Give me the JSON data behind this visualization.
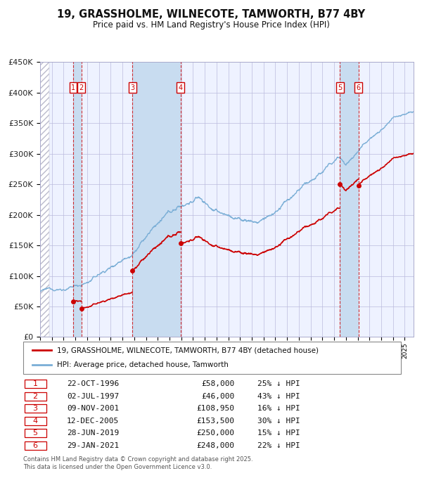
{
  "title": "19, GRASSHOLME, WILNECOTE, TAMWORTH, B77 4BY",
  "subtitle": "Price paid vs. HM Land Registry's House Price Index (HPI)",
  "ylim": [
    0,
    450000
  ],
  "yticks": [
    0,
    50000,
    100000,
    150000,
    200000,
    250000,
    300000,
    350000,
    400000,
    450000
  ],
  "ytick_labels": [
    "£0",
    "£50K",
    "£100K",
    "£150K",
    "£200K",
    "£250K",
    "£300K",
    "£350K",
    "£400K",
    "£450K"
  ],
  "xlim_start": 1994.0,
  "xlim_end": 2025.75,
  "hpi_line_color": "#7aaed6",
  "price_line_color": "#cc0000",
  "vline_color": "#cc0000",
  "shade_color": "#ddeeff",
  "grid_color": "#bbbbdd",
  "chart_bg_color": "#eef2ff",
  "transactions": [
    {
      "id": 1,
      "date_str": "22-OCT-1996",
      "date_num": 1996.81,
      "price": 58000,
      "hpi_pct": 25
    },
    {
      "id": 2,
      "date_str": "02-JUL-1997",
      "date_num": 1997.5,
      "price": 46000,
      "hpi_pct": 43
    },
    {
      "id": 3,
      "date_str": "09-NOV-2001",
      "date_num": 2001.86,
      "price": 108950,
      "hpi_pct": 16
    },
    {
      "id": 4,
      "date_str": "12-DEC-2005",
      "date_num": 2005.95,
      "price": 153500,
      "hpi_pct": 30
    },
    {
      "id": 5,
      "date_str": "28-JUN-2019",
      "date_num": 2019.49,
      "price": 250000,
      "hpi_pct": 15
    },
    {
      "id": 6,
      "date_str": "29-JAN-2021",
      "date_num": 2021.08,
      "price": 248000,
      "hpi_pct": 22
    }
  ],
  "legend_label_red": "19, GRASSHOLME, WILNECOTE, TAMWORTH, B77 4BY (detached house)",
  "legend_label_blue": "HPI: Average price, detached house, Tamworth",
  "footer1": "Contains HM Land Registry data © Crown copyright and database right 2025.",
  "footer2": "This data is licensed under the Open Government Licence v3.0."
}
